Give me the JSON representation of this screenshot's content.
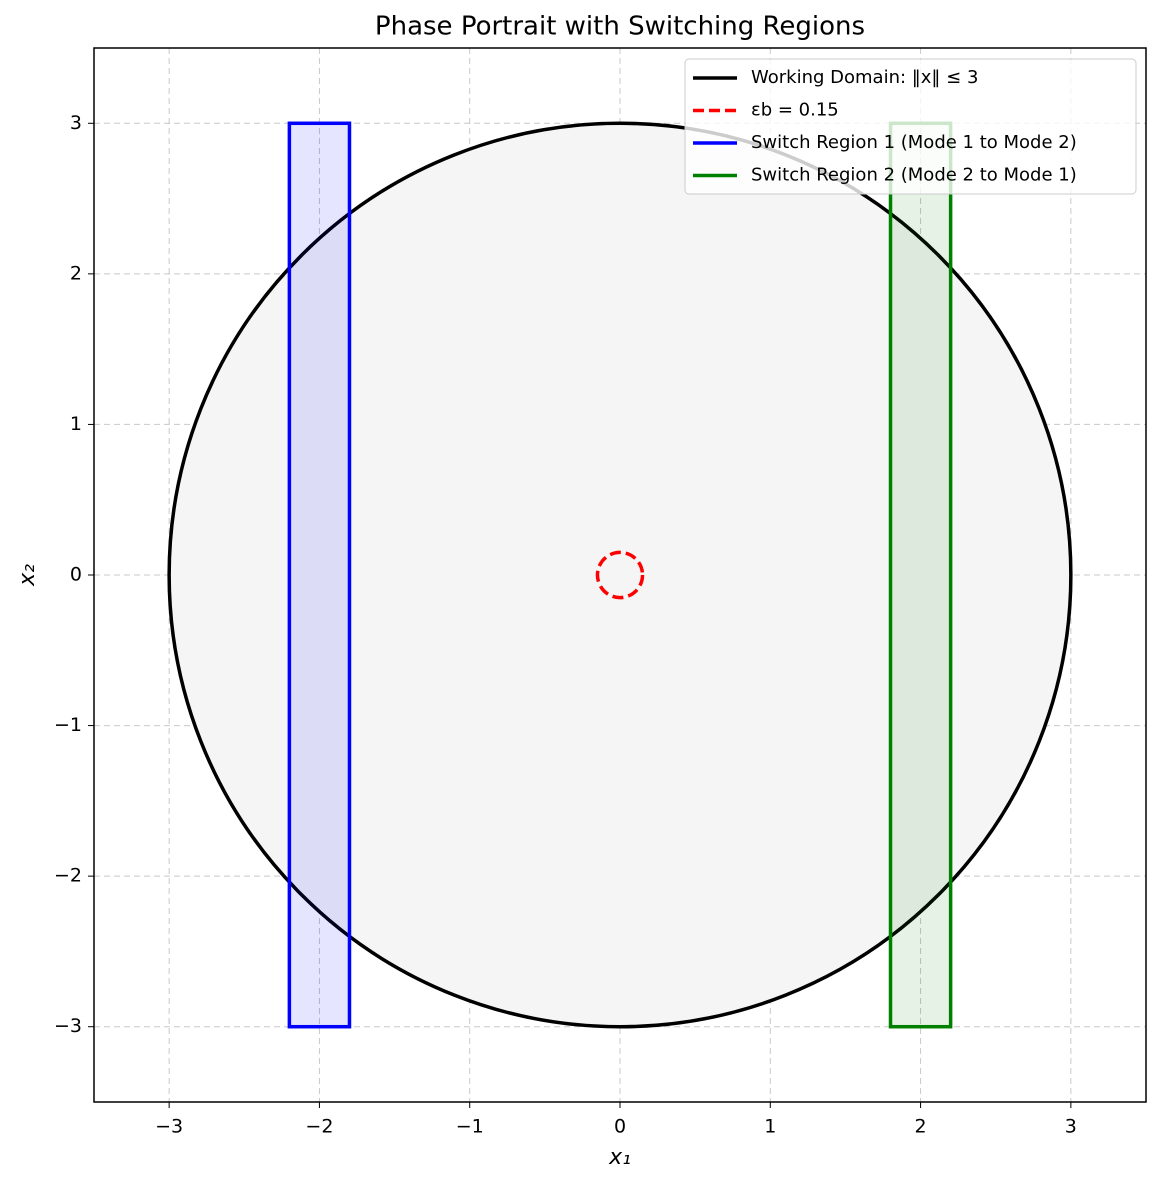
{
  "chart_data": {
    "type": "shapes",
    "title": "Phase Portrait with Switching Regions",
    "x_label": "x₁",
    "y_label": "x₂",
    "xlim": [
      -3.5,
      3.5
    ],
    "ylim": [
      -3.5,
      3.5
    ],
    "xticks": [
      {
        "value": -3,
        "label": "−3"
      },
      {
        "value": -2,
        "label": "−2"
      },
      {
        "value": -1,
        "label": "−1"
      },
      0,
      1,
      2,
      3
    ],
    "yticks": [
      {
        "value": -3,
        "label": "−3"
      },
      {
        "value": -2,
        "label": "−2"
      },
      {
        "value": -1,
        "label": "−1"
      },
      0,
      1,
      2,
      3
    ],
    "grid": true,
    "legend": "upper right",
    "series": [
      {
        "name": "Working Domain: ‖x‖ ≤ 3",
        "shape": "circle",
        "color": "#000000",
        "fill": "#f5f5f5",
        "style": "solid",
        "center": [
          0,
          0
        ],
        "radius": 3
      },
      {
        "name": "εb = 0.15",
        "shape": "circle",
        "color": "#ff0000",
        "style": "dashed",
        "center": [
          0,
          0
        ],
        "radius": 0.15
      },
      {
        "name": "Switch Region 1 (Mode 1 to Mode 2)",
        "shape": "rect",
        "color": "#0000ff",
        "fill": "#0000ff",
        "fill_opacity": 0.1,
        "style": "solid",
        "x": [
          -2.2,
          -1.8
        ],
        "y": [
          -3,
          3
        ]
      },
      {
        "name": "Switch Region 2 (Mode 2 to Mode 1)",
        "shape": "rect",
        "color": "#008000",
        "fill": "#008000",
        "fill_opacity": 0.1,
        "style": "solid",
        "x": [
          1.8,
          2.2
        ],
        "y": [
          -3,
          3
        ]
      }
    ]
  }
}
